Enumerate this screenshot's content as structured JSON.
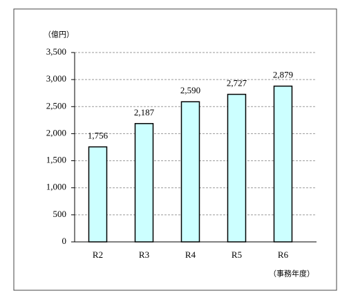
{
  "chart_data": {
    "type": "bar",
    "unit_label": "（億円）",
    "x_axis_label": "（事務年度）",
    "categories": [
      "R2",
      "R3",
      "R4",
      "R5",
      "R6"
    ],
    "values": [
      1756,
      2187,
      2590,
      2727,
      2879
    ],
    "value_labels": [
      "1,756",
      "2,187",
      "2,590",
      "2,727",
      "2,879"
    ],
    "color": "#ccffff",
    "ylim": [
      0,
      3500
    ],
    "yticks": [
      0,
      500,
      {
        "value": 1000,
        "label": "1,000"
      },
      {
        "value": 1500,
        "label": "1,500"
      },
      {
        "value": 2000,
        "label": "2,000"
      },
      {
        "value": 2500,
        "label": "2,500"
      },
      {
        "value": 3000,
        "label": "3,000"
      },
      {
        "value": 3500,
        "label": "3,500"
      }
    ],
    "grid": true
  }
}
